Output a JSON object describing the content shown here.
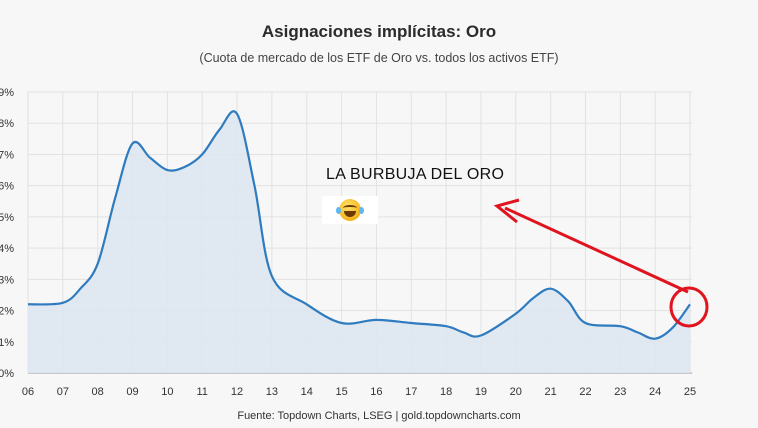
{
  "header": {
    "title": "Asignaciones implícitas: Oro",
    "subtitle": "(Cuota de mercado de los ETF de Oro vs. todos los activos ETF)"
  },
  "footer": {
    "source": "Fuente: Topdown Charts, LSEG  |  gold.topdowncharts.com"
  },
  "annotation": {
    "text": "LA BURBUJA DEL ORO",
    "emoji": "face-with-tears-of-joy-icon",
    "arrow_color": "#e0141e"
  },
  "chart_data": {
    "type": "area",
    "title": "Asignaciones implícitas: Oro",
    "subtitle": "(Cuota de mercado de los ETF de Oro vs. todos los activos ETF)",
    "xlabel": "",
    "ylabel": "",
    "x_ticks": [
      "06",
      "07",
      "08",
      "09",
      "10",
      "11",
      "12",
      "13",
      "14",
      "15",
      "16",
      "17",
      "18",
      "19",
      "20",
      "21",
      "22",
      "23",
      "24",
      "25"
    ],
    "y_ticks": [
      "0%",
      "1%",
      "2%",
      "3%",
      "4%",
      "5%",
      "6%",
      "7%",
      "8%",
      "9%"
    ],
    "ylim": [
      0,
      9
    ],
    "xlim": [
      2006,
      2025
    ],
    "grid": true,
    "line_color": "#2f7bbf",
    "fill_color": "#dde6ef",
    "series": [
      {
        "x": [
          2006,
          2007,
          2007.5,
          2008,
          2008.5,
          2009,
          2009.5,
          2010,
          2010.5,
          2011,
          2011.5,
          2012,
          2012.5,
          2013,
          2014,
          2015,
          2016,
          2017,
          2018,
          2018.5,
          2019,
          2020,
          2020.5,
          2021,
          2021.5,
          2022,
          2023,
          2023.5,
          2024,
          2024.5,
          2025
        ],
        "y": [
          2.2,
          2.25,
          2.7,
          3.5,
          5.6,
          7.35,
          6.9,
          6.5,
          6.6,
          7.0,
          7.8,
          8.3,
          6.0,
          3.1,
          2.2,
          1.6,
          1.7,
          1.6,
          1.5,
          1.3,
          1.2,
          1.9,
          2.4,
          2.7,
          2.3,
          1.6,
          1.5,
          1.3,
          1.1,
          1.45,
          2.2
        ]
      }
    ]
  }
}
